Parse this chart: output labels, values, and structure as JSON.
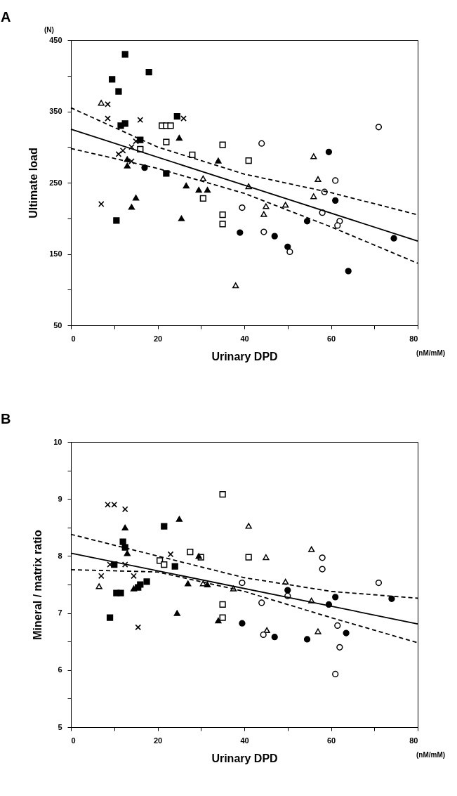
{
  "chart_data": [
    {
      "type": "scatter",
      "title": "A",
      "xlabel": "Urinary DPD",
      "ylabel": "Ultimate load",
      "annotations": [
        "(N)",
        "(nM/mM)"
      ],
      "xlim": [
        0,
        80
      ],
      "ylim": [
        50,
        450
      ],
      "xticks": [
        0,
        {
          "value": 10,
          "label": null
        },
        20,
        {
          "value": 30,
          "label": null
        },
        40,
        {
          "value": 50,
          "label": null
        },
        60,
        {
          "value": 70,
          "label": null
        },
        80
      ],
      "yticks": [
        50,
        {
          "value": 100,
          "label": null
        },
        150,
        {
          "value": 200,
          "label": null
        },
        250,
        {
          "value": 300,
          "label": null
        },
        350,
        {
          "value": 400,
          "label": null
        },
        450
      ],
      "series": [
        {
          "color": "#000000",
          "marker": "square",
          "x": [
            12.5,
            9.5,
            11,
            18,
            11.5,
            12.5,
            16,
            24.5,
            22,
            10.5
          ],
          "values": [
            430,
            395,
            378,
            405,
            330,
            333,
            310,
            343,
            263,
            197
          ]
        },
        {
          "color": "#ffffff",
          "marker": "square",
          "x": [
            21,
            22,
            23,
            22,
            16,
            28,
            35,
            41,
            30.5,
            35,
            35
          ],
          "values": [
            330,
            330,
            330,
            307,
            297,
            289,
            303,
            281,
            228,
            205,
            192
          ]
        },
        {
          "color": "#000000",
          "marker": "triangle",
          "x": [
            25,
            13,
            13,
            34,
            26.6,
            29.5,
            31.5,
            15,
            14,
            25.5
          ],
          "values": [
            313,
            283,
            274,
            281,
            246,
            240,
            240,
            229,
            216,
            200
          ]
        },
        {
          "color": "#ffffff",
          "marker": "triangle",
          "x": [
            7,
            30.5,
            41,
            38,
            56,
            57,
            56,
            45,
            44.5,
            49.5
          ],
          "values": [
            362,
            256,
            245,
            106,
            287,
            255,
            231,
            217,
            206,
            219
          ]
        },
        {
          "color": "#000000",
          "marker": "cross",
          "x": [
            8.5,
            8.5,
            16,
            26,
            11,
            12,
            14,
            15,
            7,
            14
          ],
          "values": [
            360,
            340,
            338,
            340,
            290,
            295,
            300,
            308,
            220,
            280
          ]
        },
        {
          "color": "#000000",
          "marker": "circle",
          "x": [
            17,
            39,
            59.5,
            61,
            54.5,
            47,
            50,
            64,
            74.5
          ],
          "values": [
            271,
            180,
            293,
            225,
            196,
            175,
            160,
            126,
            172
          ]
        },
        {
          "color": "#ffffff",
          "marker": "circle",
          "x": [
            44,
            39.5,
            44.5,
            50.5,
            71,
            61,
            58.5,
            58,
            62,
            61.5
          ],
          "values": [
            305,
            215,
            181,
            153,
            328,
            253,
            237,
            208,
            196,
            190
          ]
        },
        {
          "type": "line",
          "color": "#000000",
          "line_style": "solid",
          "x": [
            0,
            80
          ],
          "values": [
            325,
            168
          ]
        },
        {
          "type": "line",
          "color": "#000000",
          "line_style": "dashed",
          "x": [
            0,
            20,
            40,
            60,
            80
          ],
          "values": [
            355,
            300,
            262,
            236,
            205
          ]
        },
        {
          "type": "line",
          "color": "#000000",
          "line_style": "dashed",
          "x": [
            0,
            20,
            40,
            60,
            80
          ],
          "values": [
            298,
            270,
            235,
            188,
            137
          ]
        }
      ]
    },
    {
      "type": "scatter",
      "title": "B",
      "xlabel": "Urinary DPD",
      "ylabel": "Mineral / matrix ratio",
      "annotations": [
        "(nM/mM)"
      ],
      "xlim": [
        0,
        80
      ],
      "ylim": [
        5,
        10
      ],
      "xticks": [
        0,
        {
          "value": 10,
          "label": null
        },
        20,
        {
          "value": 30,
          "label": null
        },
        40,
        {
          "value": 50,
          "label": null
        },
        60,
        {
          "value": 70,
          "label": null
        },
        80
      ],
      "yticks": [
        5,
        {
          "value": 5.5,
          "label": null
        },
        6,
        {
          "value": 6.5,
          "label": null
        },
        7,
        {
          "value": 7.5,
          "label": null
        },
        8,
        {
          "value": 8.5,
          "label": null
        },
        9,
        {
          "value": 9.5,
          "label": null
        },
        10
      ],
      "series": [
        {
          "color": "#000000",
          "marker": "cross",
          "x": [
            8.5,
            10,
            12.5,
            9,
            7,
            12.5,
            14.5,
            23,
            15.5
          ],
          "values": [
            8.9,
            8.9,
            8.82,
            7.85,
            7.65,
            7.85,
            7.65,
            8.03,
            6.75
          ]
        },
        {
          "color": "#000000",
          "marker": "square",
          "x": [
            12,
            12.5,
            21.5,
            24,
            10,
            10.5,
            11.5,
            15.5,
            16,
            17.5,
            9
          ],
          "values": [
            8.25,
            8.15,
            8.52,
            7.82,
            7.85,
            7.35,
            7.35,
            7.45,
            7.5,
            7.55,
            6.92
          ]
        },
        {
          "color": "#ffffff",
          "marker": "square",
          "x": [
            35,
            20.5,
            21.5,
            27.5,
            30,
            41,
            35,
            35
          ],
          "values": [
            9.08,
            7.92,
            7.85,
            8.07,
            7.98,
            7.98,
            7.15,
            6.92
          ]
        },
        {
          "color": "#000000",
          "marker": "triangle",
          "x": [
            12.5,
            25,
            13,
            29.5,
            27,
            31.5,
            14.5,
            24.5,
            34
          ],
          "values": [
            8.5,
            8.65,
            8.05,
            8.0,
            7.52,
            7.5,
            7.43,
            7.0,
            6.87
          ]
        },
        {
          "color": "#ffffff",
          "marker": "triangle",
          "x": [
            6.5,
            41,
            45,
            30.5,
            37.5,
            55.5,
            49.5,
            55.5,
            45.2,
            57
          ],
          "values": [
            7.47,
            8.53,
            7.98,
            7.52,
            7.43,
            8.12,
            7.55,
            7.22,
            6.7,
            6.68
          ]
        },
        {
          "color": "#000000",
          "marker": "circle",
          "x": [
            39.5,
            47,
            54.5,
            50,
            59.5,
            61,
            63.5,
            74
          ],
          "values": [
            6.82,
            6.58,
            6.54,
            7.4,
            7.15,
            7.28,
            6.65,
            7.25
          ]
        },
        {
          "color": "#ffffff",
          "marker": "circle",
          "x": [
            39.5,
            44,
            50,
            58,
            58,
            71,
            44.4,
            61.5,
            62,
            61
          ],
          "values": [
            7.53,
            7.18,
            7.3,
            7.97,
            7.77,
            7.53,
            6.62,
            6.78,
            6.4,
            5.93
          ]
        },
        {
          "type": "line",
          "color": "#000000",
          "line_style": "solid",
          "x": [
            0,
            80
          ],
          "values": [
            8.05,
            6.81
          ]
        },
        {
          "type": "line",
          "color": "#000000",
          "line_style": "dashed",
          "x": [
            0,
            20,
            40,
            60,
            80
          ],
          "values": [
            8.38,
            8.0,
            7.62,
            7.38,
            7.26
          ]
        },
        {
          "type": "line",
          "color": "#000000",
          "line_style": "dashed",
          "x": [
            0,
            20,
            40,
            60,
            80
          ],
          "values": [
            7.76,
            7.72,
            7.38,
            6.92,
            6.48
          ]
        }
      ]
    }
  ]
}
